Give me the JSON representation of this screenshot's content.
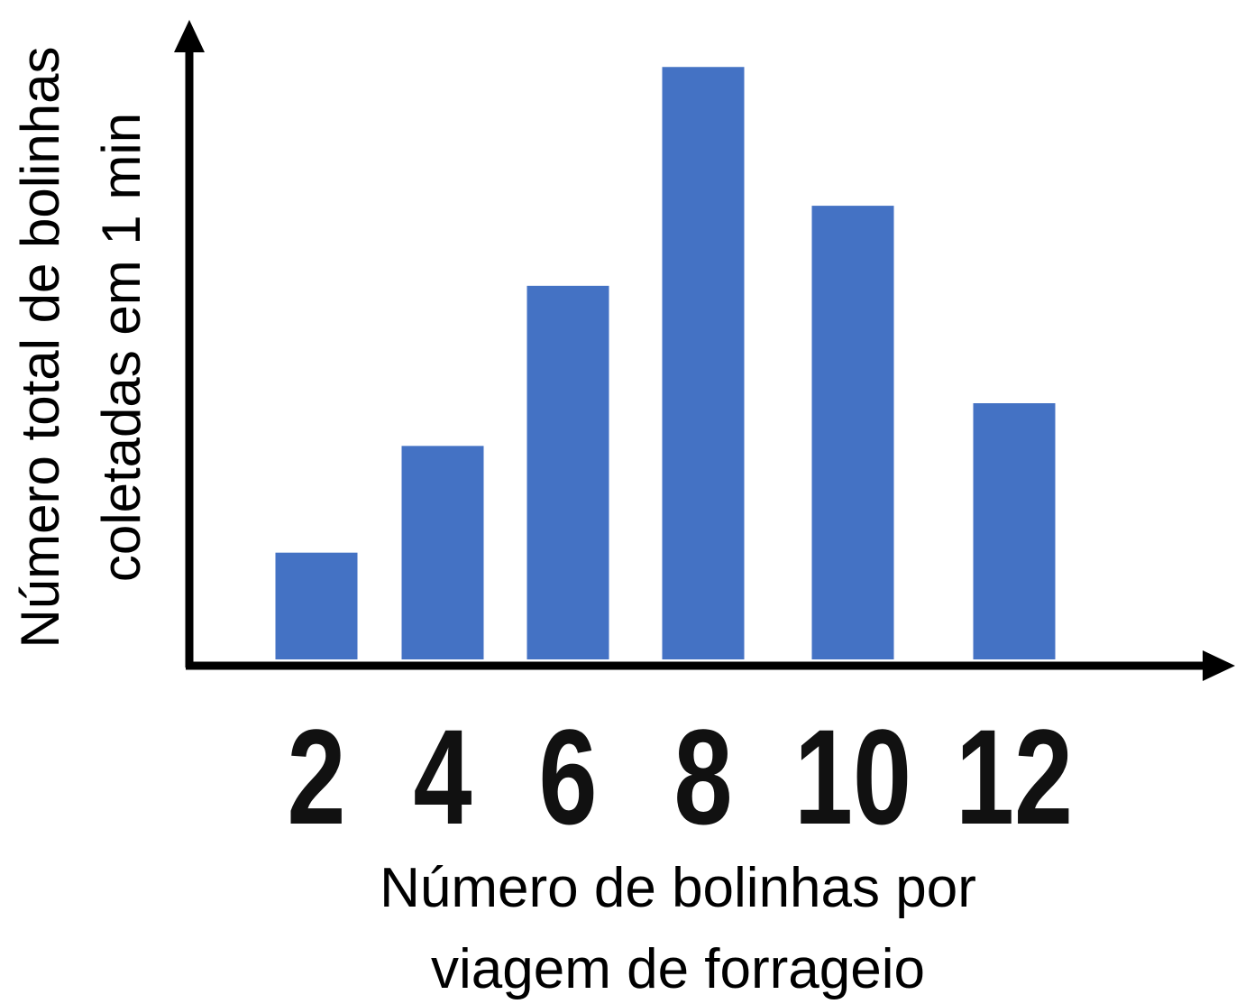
{
  "chart_data": {
    "type": "bar",
    "categories": [
      "2",
      "4",
      "6",
      "8",
      "10",
      "12"
    ],
    "values": [
      2,
      4,
      7,
      11.1,
      8.5,
      4.8
    ],
    "xlabel": [
      "Número de bolinhas por",
      "viagem de forrageio"
    ],
    "ylabel": [
      "Número total de bolinhas",
      "coletadas em 1 min"
    ],
    "ylim": [
      0,
      12
    ],
    "grid": false,
    "legend": "none",
    "bar_color": "#4472c4",
    "axis_color": "#000000"
  }
}
